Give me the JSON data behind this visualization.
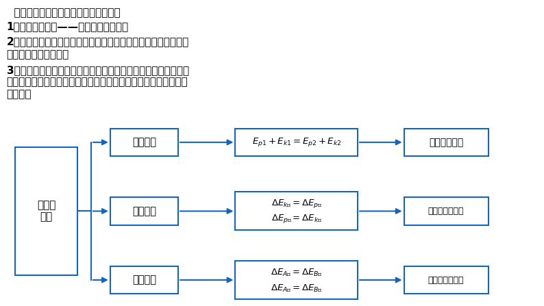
{
  "bg_color": "#ffffff",
  "text_color": "#000000",
  "box_color": "#1565c0",
  "arrow_color": "#1565c0",
  "title_lines": [
    "  应用机械能守恒定律解题的基本思路：",
    "1、选取研究对象——物体系统或物体；",
    "2、根据研究对象所经历的物理过程，进行受力分析、做功分析，",
    "判断机械能是否守恒；",
    "3、选取合适的零势能参考平面，确定研究对象在初、末状态的机",
    "械能；如果利用转化观点或转移观点解决问题则不需要选零势能参",
    "考平面；"
  ],
  "main_label": "机械能\n守恒",
  "branch_labels": [
    "守恒观点",
    "转化观点",
    "转移观点"
  ],
  "result_labels": [
    "要选零势能面",
    "不用选零势能面",
    "不用选零势能面"
  ],
  "formula1": "$E_{p1} + E_{k1} = E_{p2} + E_{k2}$",
  "formula2a": "$\\Delta E_{p增} = \\Delta E_{k减}$",
  "formula2b": "$\\Delta E_{k增} = \\Delta E_{p减}$",
  "formula3a": "$\\Delta E_{A增} = \\Delta E_{B减}$",
  "formula3b": "$\\Delta E_{A减} = \\Delta E_{B增}$"
}
